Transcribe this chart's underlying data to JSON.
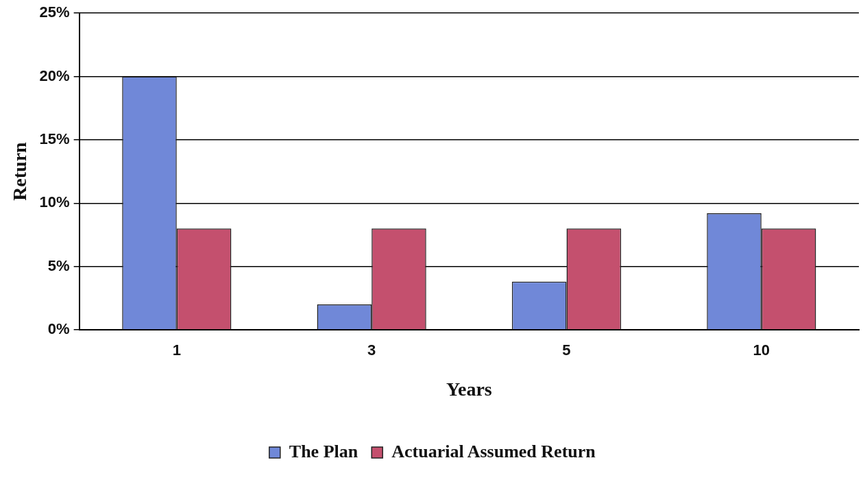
{
  "chart_data": {
    "type": "bar",
    "xlabel": "Years",
    "ylabel": "Return",
    "categories": [
      "1",
      "3",
      "5",
      "10"
    ],
    "series": [
      {
        "name": "The Plan",
        "color": "#7088d8",
        "values": [
          20,
          2,
          3.8,
          9.2
        ]
      },
      {
        "name": "Actuarial Assumed Return",
        "color": "#c4506e",
        "values": [
          8,
          8,
          8,
          8
        ]
      }
    ],
    "ylim": [
      0,
      25
    ],
    "yticks": [
      {
        "value": 0,
        "label": "0%"
      },
      {
        "value": 5,
        "label": "5%"
      },
      {
        "value": 10,
        "label": "10%"
      },
      {
        "value": 15,
        "label": "15%"
      },
      {
        "value": 20,
        "label": "20%"
      },
      {
        "value": 25,
        "label": "25%"
      }
    ],
    "grid": "y",
    "legend": "bottom"
  }
}
